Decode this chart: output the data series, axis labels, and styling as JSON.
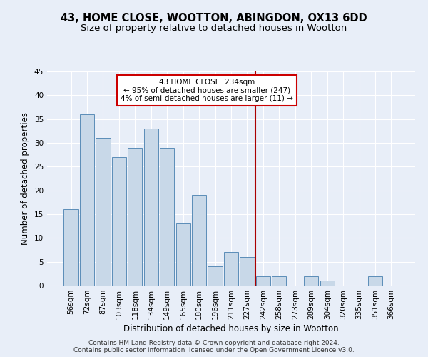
{
  "title": "43, HOME CLOSE, WOOTTON, ABINGDON, OX13 6DD",
  "subtitle": "Size of property relative to detached houses in Wootton",
  "xlabel": "Distribution of detached houses by size in Wootton",
  "ylabel": "Number of detached properties",
  "footer_line1": "Contains HM Land Registry data © Crown copyright and database right 2024.",
  "footer_line2": "Contains public sector information licensed under the Open Government Licence v3.0.",
  "bar_labels": [
    "56sqm",
    "72sqm",
    "87sqm",
    "103sqm",
    "118sqm",
    "134sqm",
    "149sqm",
    "165sqm",
    "180sqm",
    "196sqm",
    "211sqm",
    "227sqm",
    "242sqm",
    "258sqm",
    "273sqm",
    "289sqm",
    "304sqm",
    "320sqm",
    "335sqm",
    "351sqm",
    "366sqm"
  ],
  "bar_values": [
    16,
    36,
    31,
    27,
    29,
    33,
    29,
    13,
    19,
    4,
    7,
    6,
    2,
    2,
    0,
    2,
    1,
    0,
    0,
    2,
    0
  ],
  "bar_color": "#c8d8e8",
  "bar_edge_color": "#5b8db8",
  "vline_x": 11.5,
  "vline_color": "#aa0000",
  "annotation_text": "43 HOME CLOSE: 234sqm\n← 95% of detached houses are smaller (247)\n4% of semi-detached houses are larger (11) →",
  "annotation_box_color": "#cc0000",
  "ylim": [
    0,
    45
  ],
  "yticks": [
    0,
    5,
    10,
    15,
    20,
    25,
    30,
    35,
    40,
    45
  ],
  "bg_color": "#e8eef8",
  "grid_color": "#ffffff",
  "title_fontsize": 10.5,
  "subtitle_fontsize": 9.5,
  "axis_label_fontsize": 8.5,
  "tick_fontsize": 7.5,
  "footer_fontsize": 6.5
}
